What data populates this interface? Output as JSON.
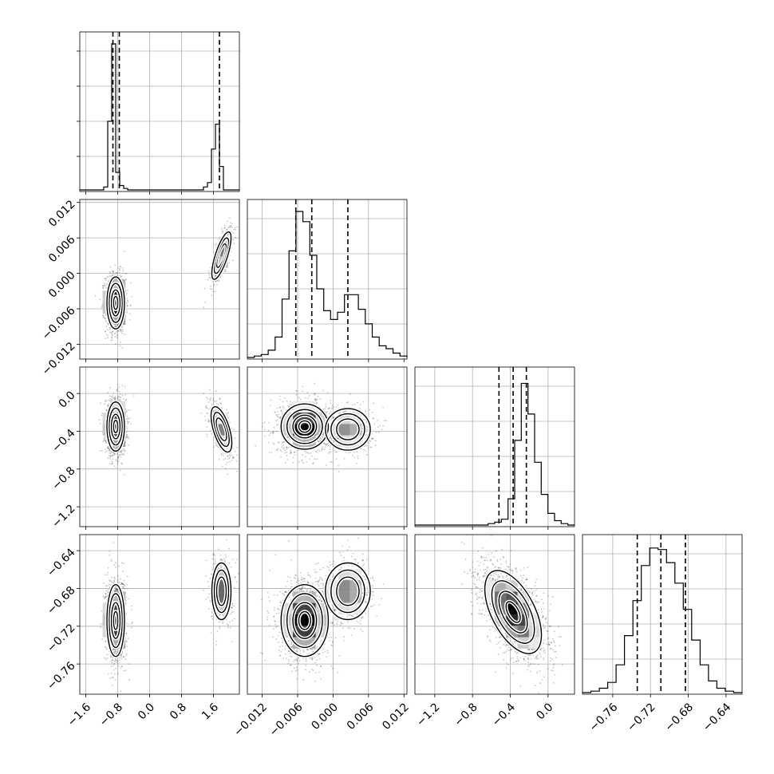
{
  "chart_data": {
    "type": "corner",
    "parameters": [
      {
        "ticks": [
          -1.6,
          -0.8,
          0.0,
          0.8,
          1.6
        ],
        "tick_labels": [
          "−1.6",
          "−0.8",
          "0.0",
          "0.8",
          "1.6"
        ],
        "range": [
          -1.75,
          2.25
        ]
      },
      {
        "ticks": [
          -0.012,
          -0.006,
          0.0,
          0.006,
          0.012
        ],
        "tick_labels": [
          "−0.012",
          "−0.006",
          "0.000",
          "0.006",
          "0.012"
        ],
        "range": [
          -0.0145,
          0.0125
        ]
      },
      {
        "ticks": [
          -1.2,
          -0.8,
          -0.4,
          0.0
        ],
        "tick_labels": [
          "−1.2",
          "−0.8",
          "−0.4",
          "0.0"
        ],
        "range": [
          -1.41,
          0.28
        ]
      },
      {
        "ticks": [
          -0.76,
          -0.72,
          -0.68,
          -0.64
        ],
        "tick_labels": [
          "−0.76",
          "−0.72",
          "−0.68",
          "−0.64"
        ],
        "range": [
          -0.792,
          -0.623
        ]
      }
    ],
    "marginals": [
      {
        "quantiles": [
          -0.92,
          -0.76,
          1.75
        ],
        "hist": [
          0,
          0,
          0,
          0,
          0,
          0,
          0.02,
          0.47,
          1.0,
          0.12,
          0.03,
          0.01,
          0,
          0,
          0,
          0,
          0,
          0,
          0,
          0,
          0,
          0,
          0,
          0,
          0,
          0,
          0,
          0,
          0,
          0,
          0,
          0.02,
          0.05,
          0.28,
          0.45,
          0.16,
          0,
          0,
          0,
          0
        ]
      },
      {
        "quantiles": [
          -0.0063,
          -0.0036,
          0.0025
        ],
        "hist": [
          0.0,
          0.01,
          0.02,
          0.05,
          0.14,
          0.4,
          0.73,
          1.0,
          0.93,
          0.7,
          0.47,
          0.32,
          0.26,
          0.31,
          0.43,
          0.43,
          0.33,
          0.23,
          0.14,
          0.08,
          0.06,
          0.03,
          0.01
        ]
      },
      {
        "quantiles": [
          -0.52,
          -0.37,
          -0.23
        ],
        "hist": [
          0,
          0,
          0,
          0,
          0,
          0,
          0,
          0,
          0,
          0,
          0,
          0.01,
          0.02,
          0.04,
          0.18,
          0.58,
          0.97,
          0.76,
          0.43,
          0.21,
          0.08,
          0.03,
          0.01,
          0
        ]
      },
      {
        "quantiles": [
          -0.734,
          -0.709,
          -0.683
        ],
        "hist": [
          0.0,
          0.01,
          0.03,
          0.07,
          0.19,
          0.39,
          0.63,
          0.87,
          0.99,
          0.98,
          0.89,
          0.75,
          0.57,
          0.36,
          0.19,
          0.08,
          0.03,
          0.01,
          0.0
        ]
      }
    ],
    "pairs": [
      {
        "row": 1,
        "col": 0,
        "modes": [
          {
            "x": -0.85,
            "y": -0.005,
            "sx": 0.11,
            "sy": 0.0022,
            "rho": 0.0,
            "w": 0.7
          },
          {
            "x": 1.8,
            "y": 0.003,
            "sx": 0.12,
            "sy": 0.002,
            "rho": 0.75,
            "w": 0.3
          }
        ]
      },
      {
        "row": 2,
        "col": 0,
        "modes": [
          {
            "x": -0.85,
            "y": -0.35,
            "sx": 0.11,
            "sy": 0.13,
            "rho": 0.0,
            "w": 0.7
          },
          {
            "x": 1.8,
            "y": -0.38,
            "sx": 0.13,
            "sy": 0.12,
            "rho": -0.6,
            "w": 0.3
          }
        ]
      },
      {
        "row": 2,
        "col": 1,
        "modes": [
          {
            "x": -0.0048,
            "y": -0.35,
            "sx": 0.002,
            "sy": 0.12,
            "rho": 0.0,
            "w": 0.7
          },
          {
            "x": 0.0025,
            "y": -0.38,
            "sx": 0.0019,
            "sy": 0.11,
            "rho": 0.0,
            "w": 0.3
          }
        ]
      },
      {
        "row": 3,
        "col": 0,
        "modes": [
          {
            "x": -0.85,
            "y": -0.714,
            "sx": 0.11,
            "sy": 0.019,
            "rho": 0.0,
            "w": 0.7
          },
          {
            "x": 1.8,
            "y": -0.683,
            "sx": 0.12,
            "sy": 0.015,
            "rho": 0.0,
            "w": 0.3
          }
        ]
      },
      {
        "row": 3,
        "col": 1,
        "modes": [
          {
            "x": -0.0048,
            "y": -0.714,
            "sx": 0.002,
            "sy": 0.019,
            "rho": 0.0,
            "w": 0.7
          },
          {
            "x": 0.0025,
            "y": -0.683,
            "sx": 0.0019,
            "sy": 0.015,
            "rho": 0.0,
            "w": 0.3
          }
        ]
      },
      {
        "row": 3,
        "col": 2,
        "modes": [
          {
            "x": -0.37,
            "y": -0.705,
            "sx": 0.15,
            "sy": 0.022,
            "rho": -0.55,
            "w": 1.0
          }
        ]
      }
    ],
    "contour_levels_sigma": [
      0.5,
      1.0,
      1.5,
      2.0
    ],
    "grid": true,
    "colors": {
      "density": "#000000",
      "points": "#000000",
      "grid": "#b0b0b0"
    }
  }
}
